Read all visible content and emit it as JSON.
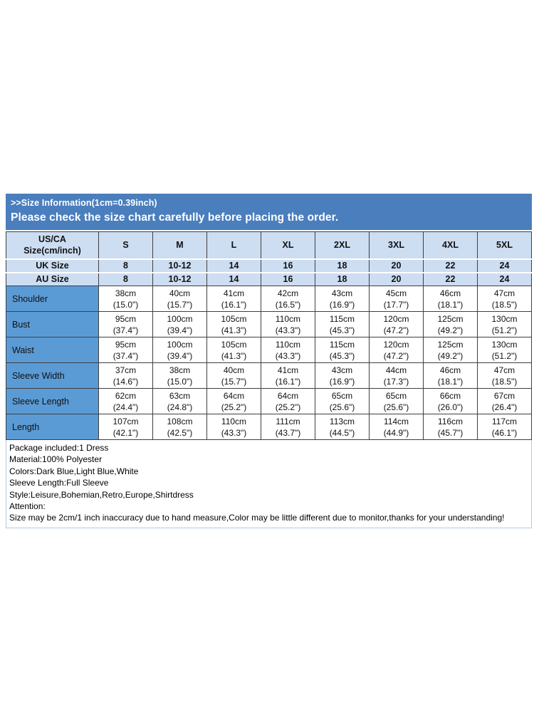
{
  "banner": {
    "line1": ">>Size Information(1cm=0.39inch)",
    "line2": "Please check the size chart carefully before placing the order."
  },
  "size_table": {
    "corner_line1": "US/CA",
    "corner_line2": "Size(cm/inch)",
    "size_headers": [
      "S",
      "M",
      "L",
      "XL",
      "2XL",
      "3XL",
      "4XL",
      "5XL"
    ],
    "uk_row": {
      "label": "UK Size",
      "values": [
        "8",
        "10-12",
        "14",
        "16",
        "18",
        "20",
        "22",
        "24"
      ]
    },
    "au_row": {
      "label": "AU Size",
      "values": [
        "8",
        "10-12",
        "14",
        "16",
        "18",
        "20",
        "22",
        "24"
      ]
    },
    "measurement_rows": [
      {
        "label": "Shoulder",
        "cm": [
          "38cm",
          "40cm",
          "41cm",
          "42cm",
          "43cm",
          "45cm",
          "46cm",
          "47cm"
        ],
        "inch": [
          "(15.0\")",
          "(15.7\")",
          "(16.1\")",
          "(16.5\")",
          "(16.9\")",
          "(17.7\")",
          "(18.1\")",
          "(18.5\")"
        ]
      },
      {
        "label": "Bust",
        "cm": [
          "95cm",
          "100cm",
          "105cm",
          "110cm",
          "115cm",
          "120cm",
          "125cm",
          "130cm"
        ],
        "inch": [
          "(37.4\")",
          "(39.4\")",
          "(41.3\")",
          "(43.3\")",
          "(45.3\")",
          "(47.2\")",
          "(49.2\")",
          "(51.2\")"
        ]
      },
      {
        "label": "Waist",
        "cm": [
          "95cm",
          "100cm",
          "105cm",
          "110cm",
          "115cm",
          "120cm",
          "125cm",
          "130cm"
        ],
        "inch": [
          "(37.4\")",
          "(39.4\")",
          "(41.3\")",
          "(43.3\")",
          "(45.3\")",
          "(47.2\")",
          "(49.2\")",
          "(51.2\")"
        ]
      },
      {
        "label": "Sleeve Width",
        "cm": [
          "37cm",
          "38cm",
          "40cm",
          "41cm",
          "43cm",
          "44cm",
          "46cm",
          "47cm"
        ],
        "inch": [
          "(14.6\")",
          "(15.0\")",
          "(15.7\")",
          "(16.1\")",
          "(16.9\")",
          "(17.3\")",
          "(18.1\")",
          "(18.5\")"
        ]
      },
      {
        "label": "Sleeve Length",
        "cm": [
          "62cm",
          "63cm",
          "64cm",
          "64cm",
          "65cm",
          "65cm",
          "66cm",
          "67cm"
        ],
        "inch": [
          "(24.4\")",
          "(24.8\")",
          "(25.2\")",
          "(25.2\")",
          "(25.6\")",
          "(25.6\")",
          "(26.0\")",
          "(26.4\")"
        ]
      },
      {
        "label": "Length",
        "cm": [
          "107cm",
          "108cm",
          "110cm",
          "111cm",
          "113cm",
          "114cm",
          "116cm",
          "117cm"
        ],
        "inch": [
          "(42.1\")",
          "(42.5\")",
          "(43.3\")",
          "(43.7\")",
          "(44.5\")",
          "(44.9\")",
          "(45.7\")",
          "(46.1\")"
        ]
      }
    ]
  },
  "details": {
    "lines": [
      "Package included:1 Dress",
      "Material:100% Polyester",
      "Colors:Dark Blue,Light Blue,White",
      "Sleeve Length:Full Sleeve",
      "Style:Leisure,Bohemian,Retro,Europe,Shirtdress",
      "Attention:",
      "Size may be 2cm/1 inch inaccuracy due to hand measure,Color may be little different due to monitor,thanks for your understanding!"
    ]
  },
  "colors": {
    "banner_bg": "#4a7ebd",
    "header_bg": "#cdddf2",
    "label_column_bg": "#5b9bd5",
    "grid_line": "#3f3f3f",
    "details_border": "#b6c8de",
    "banner_text": "#ffffff",
    "body_text": "#111111"
  }
}
